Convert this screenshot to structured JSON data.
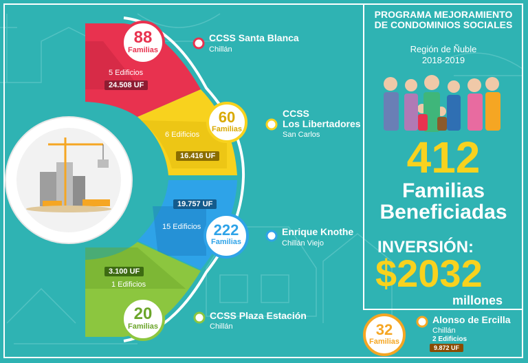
{
  "program": {
    "title_line1": "PROGRAMA MEJORAMIENTO",
    "title_line2": "DE CONDOMINIOS SOCIALES",
    "region": "Región de Ñuble",
    "years": "2018-2019",
    "total_number": "412",
    "total_label_line1": "Familias",
    "total_label_line2": "Beneficiadas",
    "investment_label": "INVERSIÓN:",
    "investment_amount": "$2032",
    "investment_unit": "millones"
  },
  "colors": {
    "background": "#2fb3b3",
    "red": "#e8324f",
    "yellow": "#f8d21e",
    "blue": "#2ea3e8",
    "green": "#8cc63f",
    "orange": "#f5a623",
    "accent_number": "#f8d21e"
  },
  "segments": [
    {
      "families_number": "88",
      "families_label": "Familias",
      "buildings": "5 Edificios",
      "uf": "24.508 UF",
      "site_name_line1": "CCSS Santa Blanca",
      "site_name_line2": "",
      "city": "Chillán"
    },
    {
      "families_number": "60",
      "families_label": "Familias",
      "buildings": "6 Edificios",
      "uf": "16.416 UF",
      "site_name_line1": "CCSS",
      "site_name_line2": "Los Libertadores",
      "city": "San Carlos"
    },
    {
      "families_number": "222",
      "families_label": "Familias",
      "buildings": "15 Edificios",
      "uf": "19.757 UF",
      "site_name_line1": "Enrique Knothe",
      "site_name_line2": "",
      "city": "Chillán Viejo"
    },
    {
      "families_number": "20",
      "families_label": "Familias",
      "buildings": "1 Edificios",
      "uf": "3.100 UF",
      "site_name_line1": "CCSS Plaza Estación",
      "site_name_line2": "",
      "city": "Chillán"
    }
  ],
  "extra": {
    "families_number": "32",
    "families_label": "Familias",
    "site_name": "Alonso de Ercilla",
    "city": "Chillán",
    "buildings": "2 Edificios",
    "uf": "9.872 UF"
  },
  "icons": [
    "construction-site-icon",
    "family-illustration-icon",
    "location-pin-icon"
  ]
}
